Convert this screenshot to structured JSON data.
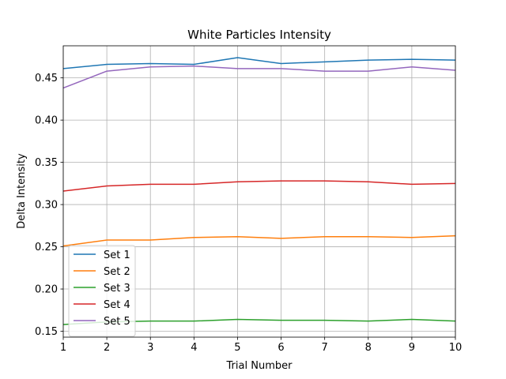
{
  "chart_data": {
    "type": "line",
    "title": "White Particles Intensity",
    "xlabel": "Trial Number",
    "ylabel": "Delta Intensity",
    "x": [
      1,
      2,
      3,
      4,
      5,
      6,
      7,
      8,
      9,
      10
    ],
    "xlim": [
      1,
      10
    ],
    "ylim": [
      0.143,
      0.488
    ],
    "xticks": [
      1,
      2,
      3,
      4,
      5,
      6,
      7,
      8,
      9,
      10
    ],
    "yticks": [
      0.15,
      0.2,
      0.25,
      0.3,
      0.35,
      0.4,
      0.45
    ],
    "ytick_labels": [
      "0.15",
      "0.20",
      "0.25",
      "0.30",
      "0.35",
      "0.40",
      "0.45"
    ],
    "grid": true,
    "legend_position": "lower-left",
    "series": [
      {
        "name": "Set 1",
        "color": "#1f77b4",
        "values": [
          0.461,
          0.466,
          0.467,
          0.466,
          0.474,
          0.467,
          0.469,
          0.471,
          0.472,
          0.471
        ]
      },
      {
        "name": "Set 2",
        "color": "#ff7f0e",
        "values": [
          0.251,
          0.258,
          0.258,
          0.261,
          0.262,
          0.26,
          0.262,
          0.262,
          0.261,
          0.263
        ]
      },
      {
        "name": "Set 3",
        "color": "#2ca02c",
        "values": [
          0.158,
          0.161,
          0.162,
          0.162,
          0.164,
          0.163,
          0.163,
          0.162,
          0.164,
          0.162
        ]
      },
      {
        "name": "Set 4",
        "color": "#d62728",
        "values": [
          0.316,
          0.322,
          0.324,
          0.324,
          0.327,
          0.328,
          0.328,
          0.327,
          0.324,
          0.325
        ]
      },
      {
        "name": "Set 5",
        "color": "#9467bd",
        "values": [
          0.438,
          0.458,
          0.463,
          0.464,
          0.461,
          0.461,
          0.458,
          0.458,
          0.463,
          0.459
        ]
      }
    ]
  }
}
